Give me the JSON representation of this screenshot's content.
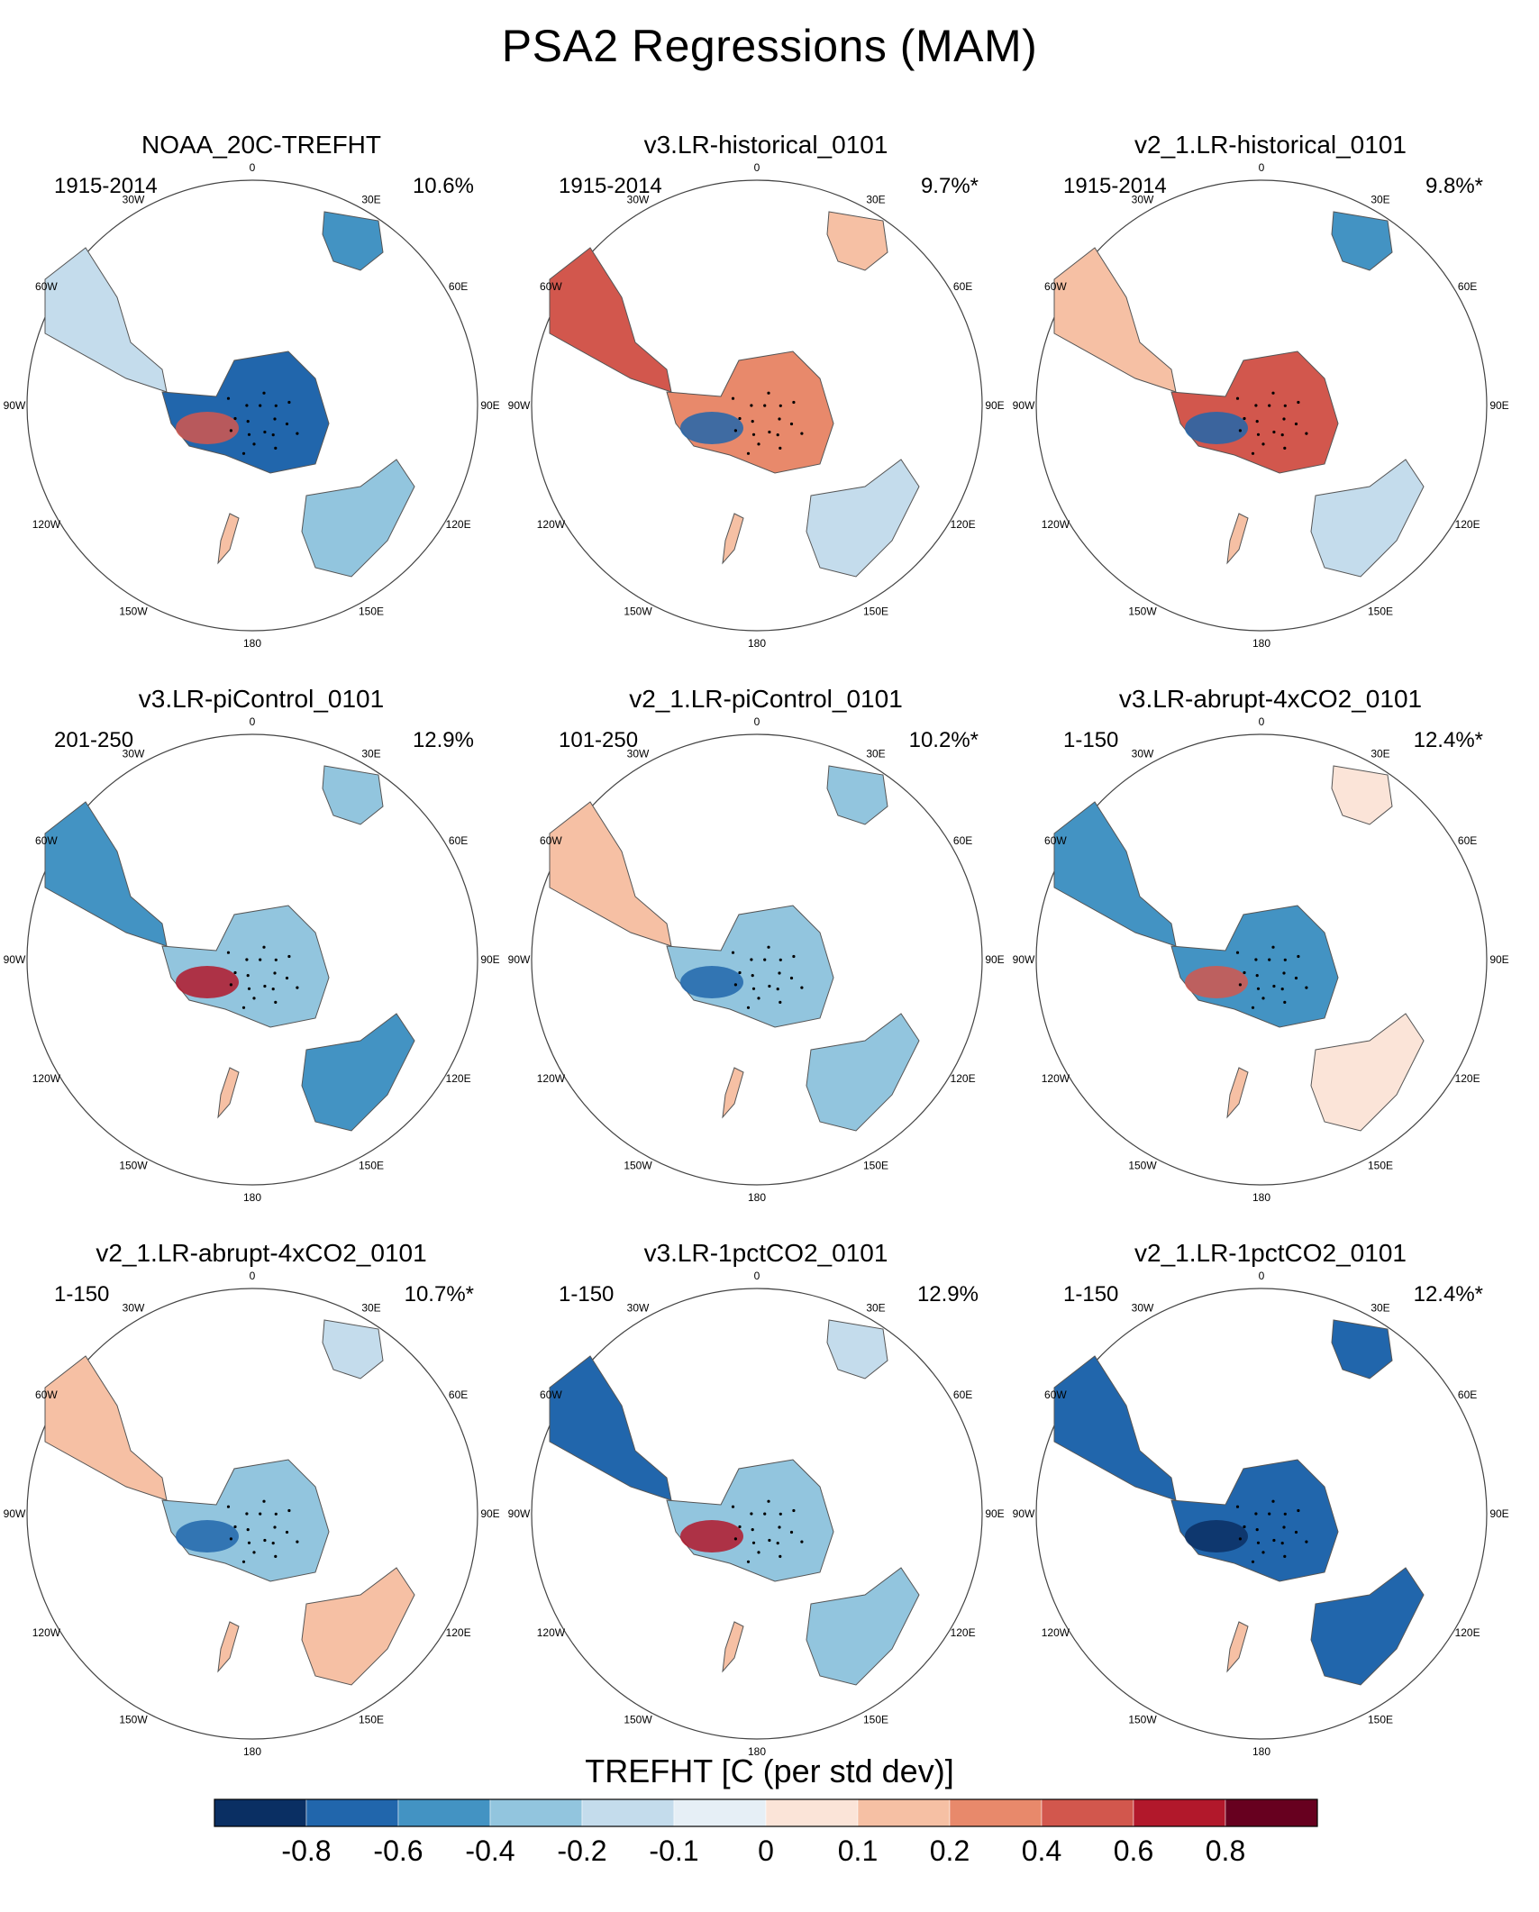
{
  "title": "PSA2 Regressions (MAM)",
  "panels": [
    {
      "title": "NOAA_20C-TREFHT",
      "period": "1915-2014",
      "pct": "10.6%"
    },
    {
      "title": "v3.LR-historical_0101",
      "period": "1915-2014",
      "pct": "9.7%*"
    },
    {
      "title": "v2_1.LR-historical_0101",
      "period": "1915-2014",
      "pct": "9.8%*"
    },
    {
      "title": "v3.LR-piControl_0101",
      "period": "201-250",
      "pct": "12.9%"
    },
    {
      "title": "v2_1.LR-piControl_0101",
      "period": "101-250",
      "pct": "10.2%*"
    },
    {
      "title": "v3.LR-abrupt-4xCO2_0101",
      "period": "1-150",
      "pct": "12.4%*"
    },
    {
      "title": "v2_1.LR-abrupt-4xCO2_0101",
      "period": "1-150",
      "pct": "10.7%*"
    },
    {
      "title": "v3.LR-1pctCO2_0101",
      "period": "1-150",
      "pct": "12.9%"
    },
    {
      "title": "v2_1.LR-1pctCO2_0101",
      "period": "1-150",
      "pct": "12.4%*"
    }
  ],
  "longitude_labels": [
    "0",
    "30E",
    "60E",
    "90E",
    "120E",
    "150E",
    "180",
    "150W",
    "120W",
    "90W",
    "60W",
    "30W"
  ],
  "colorbar": {
    "title": "TREFHT [C (per std dev)]",
    "ticks": [
      "-0.8",
      "-0.6",
      "-0.4",
      "-0.2",
      "-0.1",
      "0",
      "0.1",
      "0.2",
      "0.4",
      "0.6",
      "0.8"
    ],
    "colors": [
      "#0a2f63",
      "#2166ac",
      "#4393c3",
      "#92c5de",
      "#c4dcec",
      "#e6eff6",
      "#fbe4d8",
      "#f6c0a4",
      "#e8896b",
      "#d2574d",
      "#b2182b",
      "#67001f"
    ]
  }
}
